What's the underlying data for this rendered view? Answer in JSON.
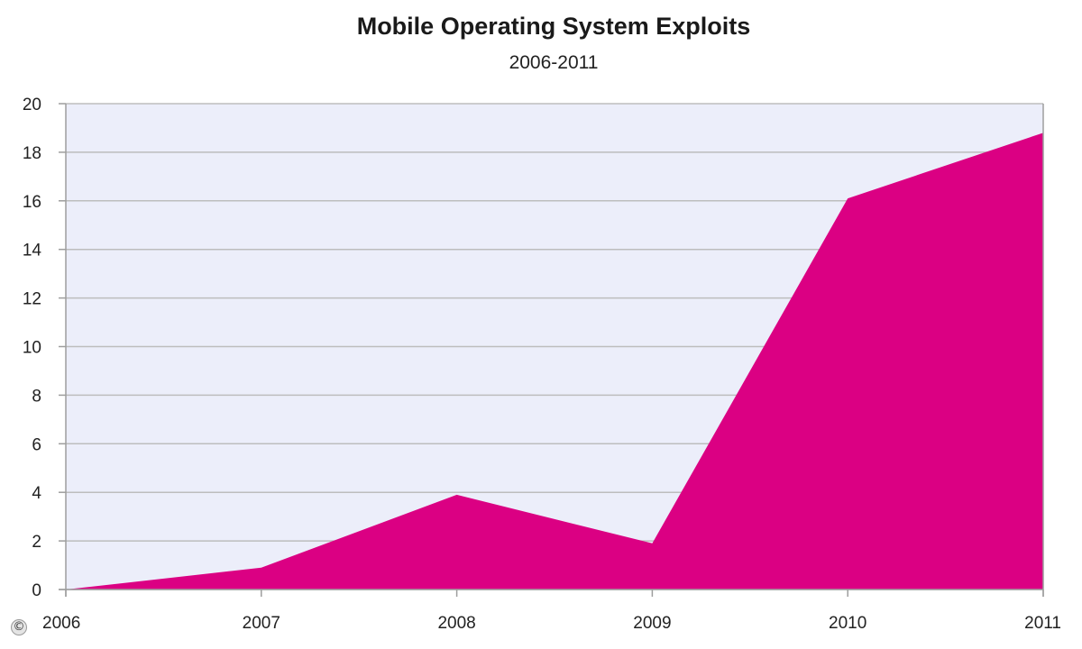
{
  "colors": {
    "plot_background": "#eceefa",
    "area_fill": "#db0083",
    "gridline": "#bdbdbd",
    "axis": "#9e9e9e"
  },
  "copyright": {
    "symbol": "©"
  },
  "chart_data": {
    "type": "area",
    "title": "Mobile Operating System Exploits",
    "subtitle": "2006-2011",
    "xlabel": "",
    "ylabel": "",
    "x": [
      "2006",
      "2007",
      "2008",
      "2009",
      "2010",
      "2011"
    ],
    "values": [
      0,
      0.9,
      3.9,
      1.9,
      16.1,
      18.8
    ],
    "ylim": [
      0,
      20
    ],
    "yticks": [
      "0",
      "2",
      "4",
      "6",
      "8",
      "10",
      "12",
      "14",
      "16",
      "18",
      "20"
    ],
    "grid": true,
    "legend": "none"
  }
}
